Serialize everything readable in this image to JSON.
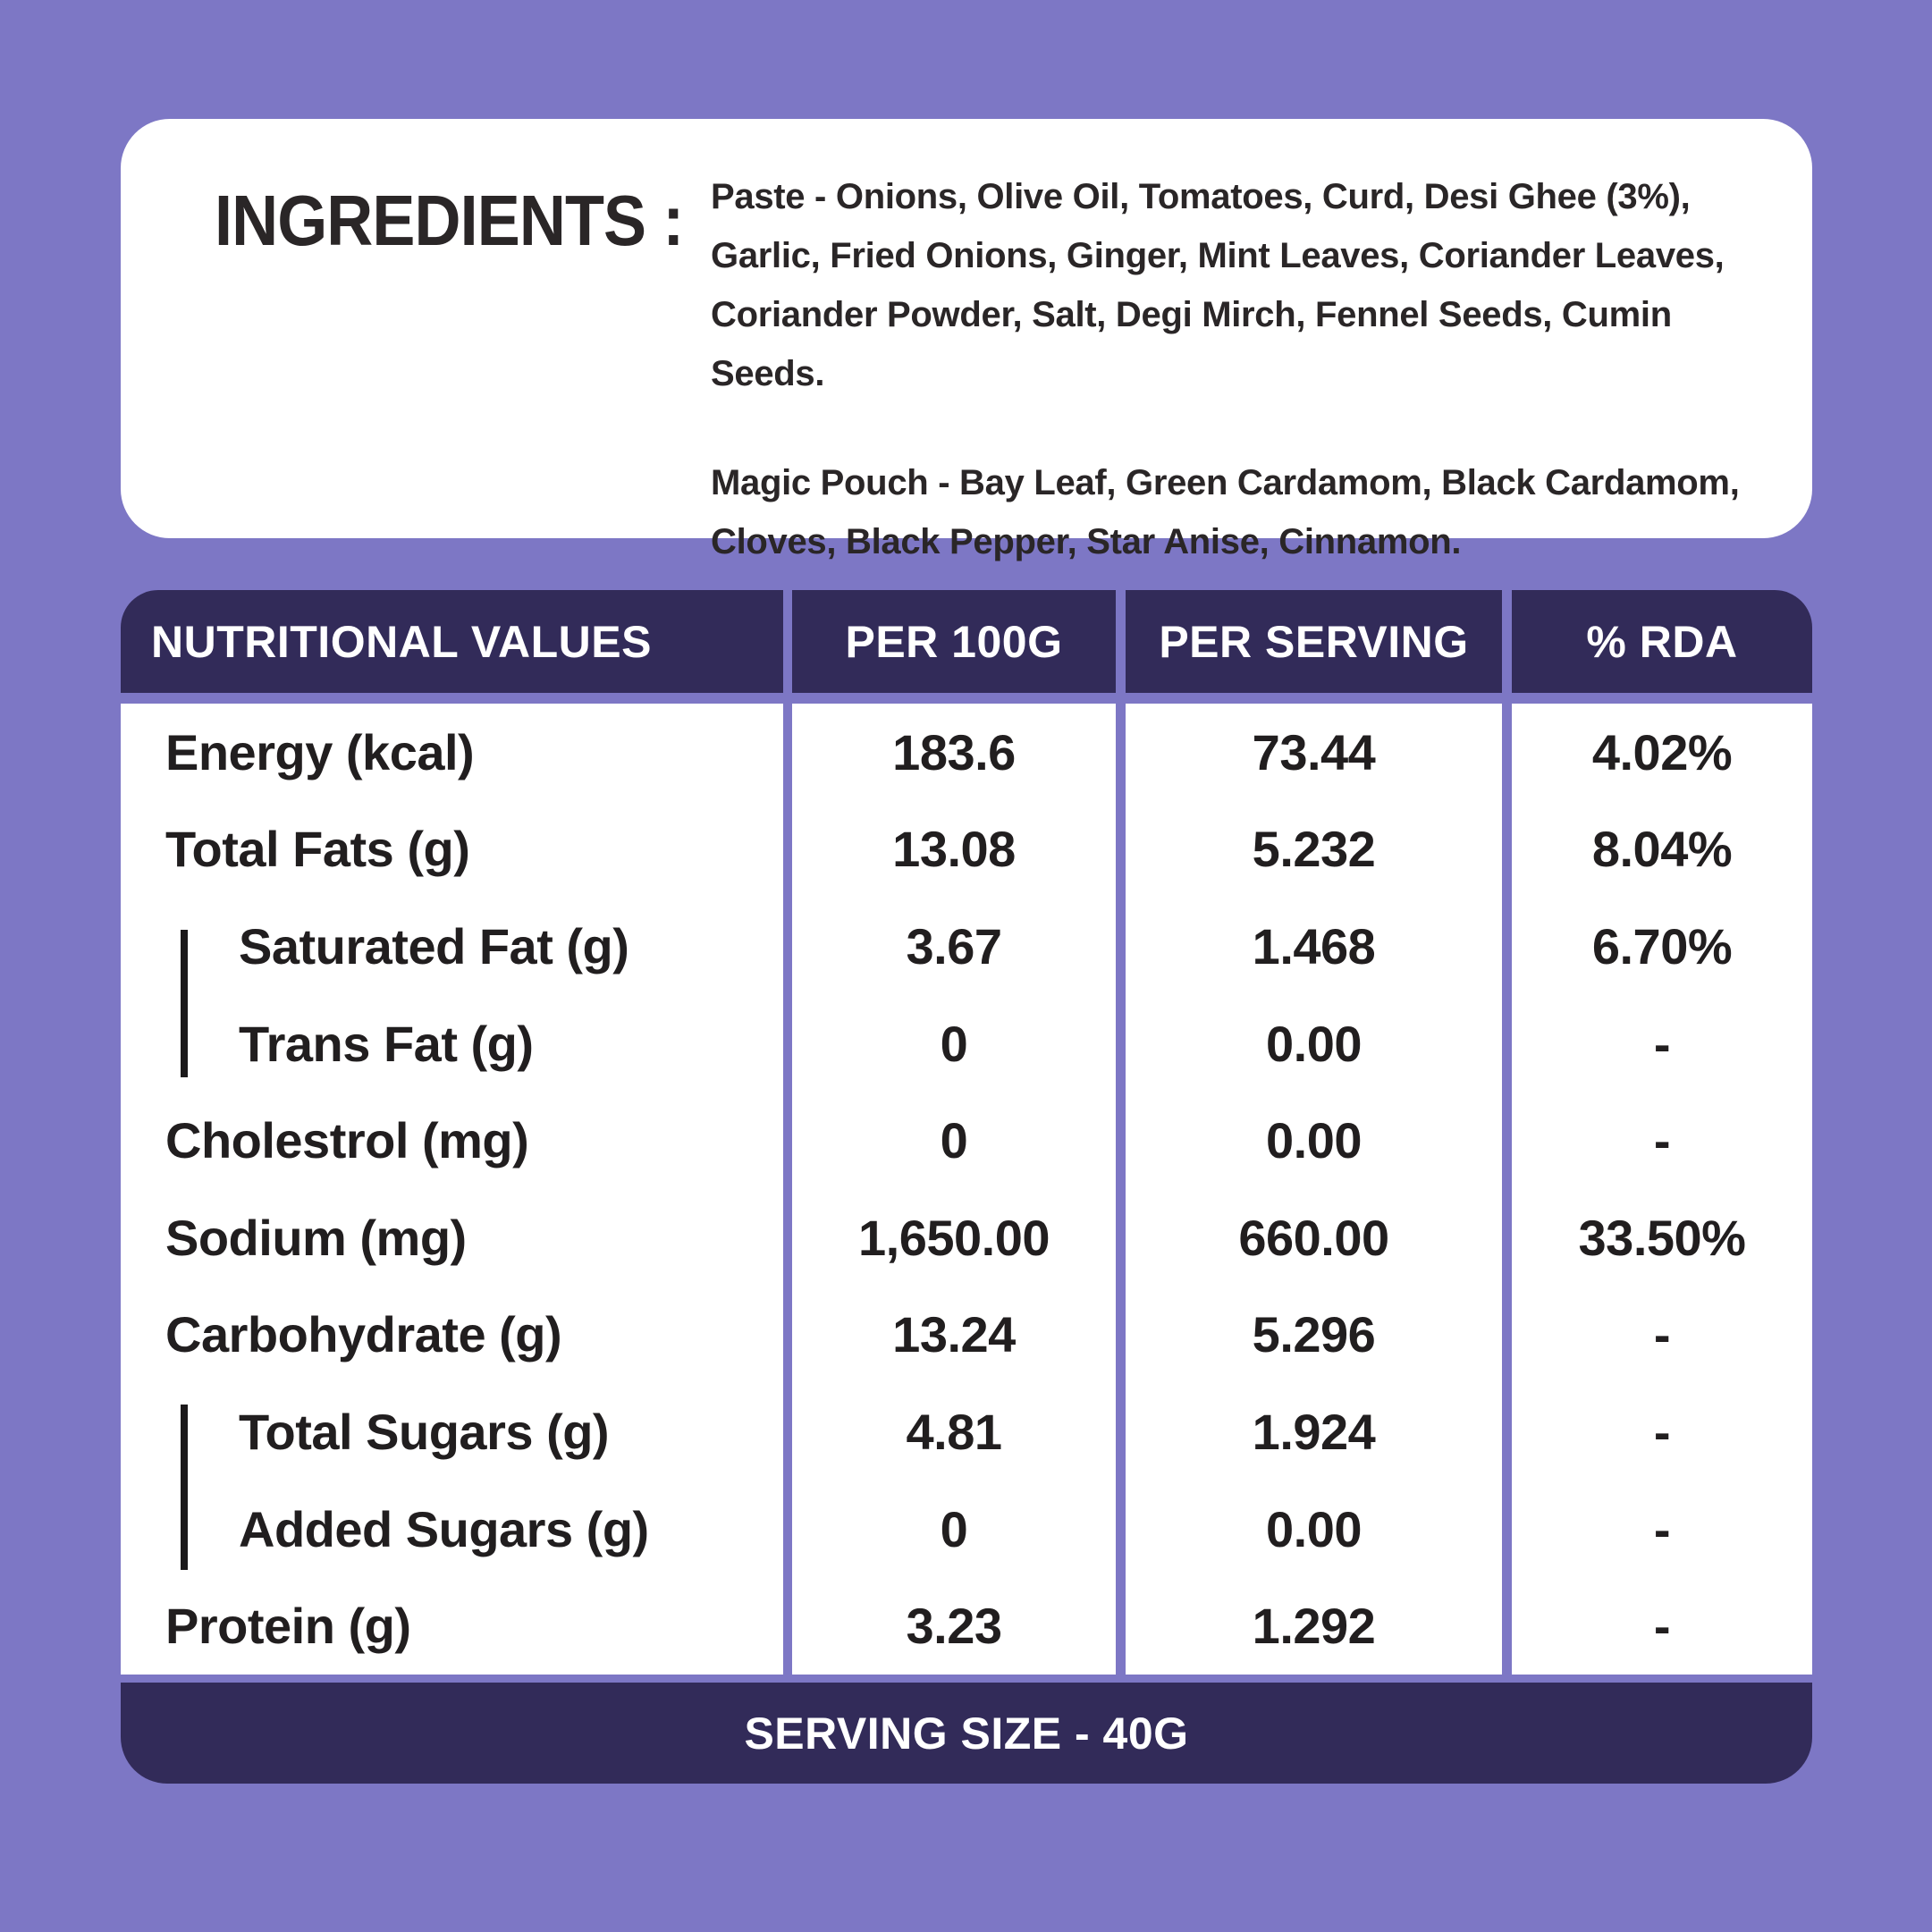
{
  "colors": {
    "background": "#7D77C5",
    "header_navy": "#322B59",
    "card_white": "#FFFFFF",
    "text_dark": "#211E1F"
  },
  "ingredients": {
    "heading": "INGREDIENTS :",
    "paste_label": "Paste - ",
    "paste_text": "Onions, Olive Oil, Tomatoes, Curd, Desi Ghee (3%), Garlic, Fried Onions, Ginger, Mint Leaves, Coriander Leaves, Coriander Powder, Salt, Degi Mirch, Fennel Seeds, Cumin Seeds.",
    "magic_pouch_label": "Magic Pouch - ",
    "magic_pouch_text": "Bay Leaf, Green Cardamom, Black Cardamom, Cloves, Black Pepper, Star Anise, Cinnamon."
  },
  "table": {
    "header": {
      "col1": "NUTRITIONAL VALUES",
      "col2": "PER 100G",
      "col3": "PER SERVING",
      "col4": "% RDA"
    },
    "rows": [
      {
        "label": "Energy (kcal)",
        "per_100g": "183.6",
        "per_serving": "73.44",
        "rda": "4.02%",
        "sub": false
      },
      {
        "label": "Total Fats (g)",
        "per_100g": "13.08",
        "per_serving": "5.232",
        "rda": "8.04%",
        "sub": false
      },
      {
        "label": "Saturated Fat (g)",
        "per_100g": "3.67",
        "per_serving": "1.468",
        "rda": "6.70%",
        "sub": true
      },
      {
        "label": "Trans Fat (g)",
        "per_100g": "0",
        "per_serving": "0.00",
        "rda": "-",
        "sub": true
      },
      {
        "label": "Cholestrol (mg)",
        "per_100g": "0",
        "per_serving": "0.00",
        "rda": "-",
        "sub": false
      },
      {
        "label": "Sodium (mg)",
        "per_100g": "1,650.00",
        "per_serving": "660.00",
        "rda": "33.50%",
        "sub": false
      },
      {
        "label": "Carbohydrate (g)",
        "per_100g": "13.24",
        "per_serving": "5.296",
        "rda": "-",
        "sub": false
      },
      {
        "label": "Total Sugars (g)",
        "per_100g": "4.81",
        "per_serving": "1.924",
        "rda": "-",
        "sub": true
      },
      {
        "label": "Added Sugars  (g)",
        "per_100g": "0",
        "per_serving": "0.00",
        "rda": "-",
        "sub": true
      },
      {
        "label": "Protein (g)",
        "per_100g": "3.23",
        "per_serving": "1.292",
        "rda": "-",
        "sub": false
      }
    ],
    "footer": "SERVING SIZE - 40G"
  }
}
